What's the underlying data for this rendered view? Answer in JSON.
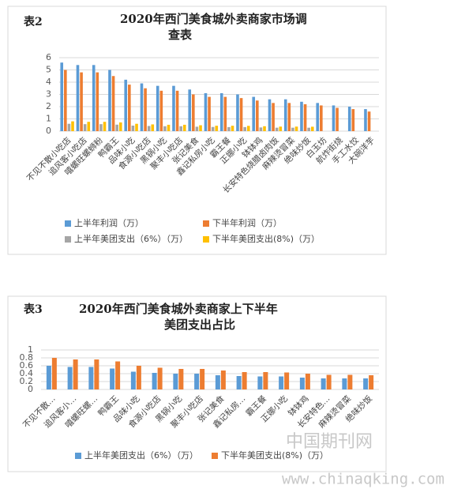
{
  "chart_data": [
    {
      "type": "bar",
      "label": "表2",
      "title": "2020年西门美食城外卖商家市场调查表",
      "categories": [
        "不见不散小吃店",
        "追风客小吃店",
        "嘻螺旺螺蛳粉",
        "鸭霸王",
        "品味小吃",
        "食源小吃店",
        "黑锅小吃",
        "聚丰小吃店",
        "张记美食",
        "鑫记私房小吃",
        "霸王餐",
        "正娜小吃",
        "钵钵鸡",
        "长安特色烧腊卤肉饭",
        "麻辣烫冒菜",
        "绝味炒饭",
        "白玉坊",
        "航炸街烧",
        "手工水饺",
        "大碗洋芋"
      ],
      "series": [
        {
          "name": "上半年利润（万）",
          "color": "#5b9bd5",
          "values": [
            5.6,
            5.4,
            5.4,
            5.0,
            4.2,
            3.9,
            3.7,
            3.7,
            3.4,
            3.1,
            3.1,
            3.0,
            2.8,
            2.6,
            2.6,
            2.4,
            2.3,
            2.1,
            2.0,
            1.8
          ]
        },
        {
          "name": "下半年利润（万）",
          "color": "#ed7d31",
          "values": [
            5.0,
            4.8,
            4.8,
            4.5,
            3.8,
            3.5,
            3.3,
            3.3,
            3.0,
            2.8,
            2.8,
            2.7,
            2.5,
            2.3,
            2.3,
            2.2,
            2.1,
            1.9,
            1.8,
            1.6
          ]
        },
        {
          "name": "上半年美团支出（6%）（万）",
          "color": "#a5a5a5",
          "values": [
            0.6,
            0.57,
            0.57,
            0.53,
            0.45,
            0.42,
            0.4,
            0.4,
            0.36,
            0.34,
            0.33,
            0.33,
            0.3,
            0.28,
            0.28,
            0.28,
            null,
            null,
            null,
            null
          ]
        },
        {
          "name": "下半年美团支出(8%)（万）",
          "color": "#ffc000",
          "values": [
            0.8,
            0.76,
            0.76,
            0.71,
            0.6,
            0.55,
            0.52,
            0.52,
            0.48,
            0.44,
            0.44,
            0.43,
            0.4,
            0.37,
            0.37,
            0.36,
            null,
            null,
            null,
            null
          ]
        }
      ],
      "ylim": [
        0,
        6
      ],
      "yticks": [
        0,
        1,
        2,
        3,
        4,
        5,
        6
      ]
    },
    {
      "type": "bar",
      "label": "表3",
      "title": "2020年西门美食城外卖商家上下半年美团支出占比",
      "categories": [
        "不见不散…",
        "追风客小…",
        "嘻螺旺螺…",
        "鸭霸王",
        "品味小吃",
        "食源小吃店",
        "黑锅小吃",
        "聚丰小吃店",
        "张记美食",
        "鑫记私房…",
        "霸王餐",
        "正娜小吃",
        "钵钵鸡",
        "长安特色…",
        "麻辣烫冒菜",
        "绝味炒饭"
      ],
      "series": [
        {
          "name": "上半年美团支出（6%）（万）",
          "color": "#5b9bd5",
          "values": [
            0.6,
            0.57,
            0.57,
            0.53,
            0.45,
            0.42,
            0.4,
            0.4,
            0.36,
            0.34,
            0.33,
            0.33,
            0.3,
            0.28,
            0.28,
            0.28
          ]
        },
        {
          "name": "下半年美团支出(8%)（万）",
          "color": "#ed7d31",
          "values": [
            0.8,
            0.76,
            0.76,
            0.71,
            0.6,
            0.55,
            0.52,
            0.52,
            0.48,
            0.44,
            0.44,
            0.43,
            0.4,
            0.37,
            0.37,
            0.36
          ]
        }
      ],
      "ylim": [
        0,
        1
      ],
      "yticks": [
        0,
        0.2,
        0.4,
        0.6,
        0.8,
        1
      ]
    }
  ],
  "watermark": {
    "cn": "中国期刊网",
    "url": "www.chinaqking.com"
  }
}
